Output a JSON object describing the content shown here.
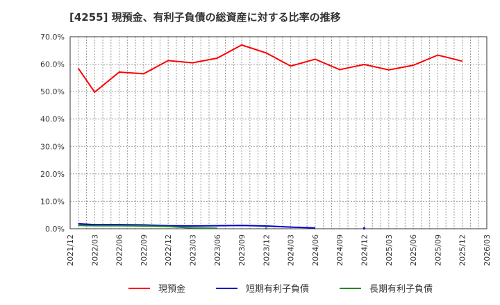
{
  "title": "[4255]  現預金、有利子負債の総資産に対する比率の推移",
  "legend": [
    {
      "label": "現預金",
      "color": "#ff0000"
    },
    {
      "label": "短期有利子負債",
      "color": "#0000cc"
    },
    {
      "label": "長期有利子負債",
      "color": "#228b22"
    }
  ],
  "chart_data": {
    "type": "line",
    "title": "[4255]  現預金、有利子負債の総資産に対する比率の推移",
    "xlabel": "",
    "ylabel": "",
    "ylim": [
      0,
      70
    ],
    "grid": true,
    "legend_position": "bottom",
    "x_tick_labels": [
      "2021/12",
      "2022/03",
      "2022/06",
      "2022/09",
      "2022/12",
      "2023/03",
      "2023/06",
      "2023/09",
      "2023/12",
      "2024/03",
      "2024/06",
      "2024/09",
      "2024/12",
      "2025/03",
      "2025/06",
      "2025/09",
      "2025/12",
      "2026/03"
    ],
    "y_tick_labels": [
      "0.0%",
      "10.0%",
      "20.0%",
      "30.0%",
      "40.0%",
      "50.0%",
      "60.0%",
      "70.0%"
    ],
    "x": [
      "2022/01",
      "2022/03",
      "2022/06",
      "2022/09",
      "2022/12",
      "2023/03",
      "2023/06",
      "2023/09",
      "2023/12",
      "2024/03",
      "2024/06",
      "2024/09",
      "2024/12",
      "2025/03",
      "2025/06",
      "2025/09",
      "2025/12"
    ],
    "series": [
      {
        "name": "現預金",
        "color": "#ff0000",
        "values": [
          58.5,
          49.8,
          57.1,
          56.5,
          61.3,
          60.5,
          62.2,
          67.0,
          64.1,
          59.3,
          61.8,
          58.0,
          59.9,
          57.9,
          59.6,
          63.3,
          61.1
        ]
      },
      {
        "name": "短期有利子負債",
        "color": "#0000cc",
        "values": [
          1.8,
          1.5,
          1.5,
          1.4,
          1.1,
          1.0,
          1.1,
          1.2,
          1.0,
          0.6,
          0.3,
          null,
          0.0,
          null,
          null,
          null,
          null
        ]
      },
      {
        "name": "長期有利子負債",
        "color": "#228b22",
        "values": [
          1.2,
          1.1,
          1.1,
          1.0,
          0.8,
          0.3,
          0.2,
          null,
          0.0,
          null,
          null,
          null,
          null,
          null,
          null,
          null,
          null
        ]
      }
    ]
  }
}
